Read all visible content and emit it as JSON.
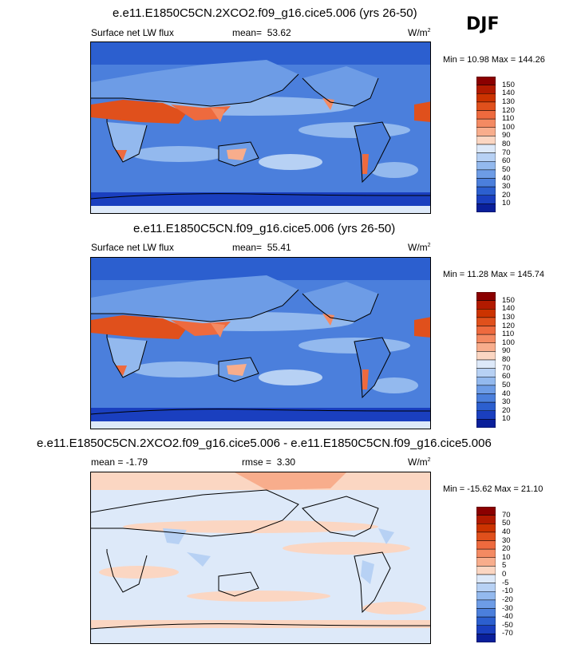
{
  "season": "DJF",
  "panels": [
    {
      "title": "e.e11.E1850C5CN.2XCO2.f09_g16.cice5.006 (yrs 26-50)",
      "variable": "Surface net LW flux",
      "stat_left_label": "",
      "mean_label": "mean=",
      "mean_value": "53.62",
      "units": "W/m",
      "units_sup": "2",
      "min_label": "Min =",
      "min_value": "10.98",
      "max_label": "Max =",
      "max_value": "144.26",
      "colorbar_labels": [
        "150",
        "140",
        "130",
        "120",
        "110",
        "100",
        "90",
        "80",
        "70",
        "60",
        "50",
        "40",
        "30",
        "20",
        "10"
      ],
      "colorbar_colors": [
        "#8b0000",
        "#b21a00",
        "#cc3300",
        "#e0501c",
        "#ee6a3e",
        "#f48a62",
        "#f8ad8c",
        "#fbd6c2",
        "#dde9f9",
        "#b7d1f4",
        "#93b9ee",
        "#6d9ce6",
        "#4b7fdc",
        "#2c5fcf",
        "#1a3fbf",
        "#0a1f9a"
      ]
    },
    {
      "title": "e.e11.E1850C5CN.f09_g16.cice5.006 (yrs 26-50)",
      "variable": "Surface net LW flux",
      "mean_label": "mean=",
      "mean_value": "55.41",
      "units": "W/m",
      "units_sup": "2",
      "min_label": "Min =",
      "min_value": "11.28",
      "max_label": "Max =",
      "max_value": "145.74",
      "colorbar_labels": [
        "150",
        "140",
        "130",
        "120",
        "110",
        "100",
        "90",
        "80",
        "70",
        "60",
        "50",
        "40",
        "30",
        "20",
        "10"
      ],
      "colorbar_colors": [
        "#8b0000",
        "#b21a00",
        "#cc3300",
        "#e0501c",
        "#ee6a3e",
        "#f48a62",
        "#f8ad8c",
        "#fbd6c2",
        "#dde9f9",
        "#b7d1f4",
        "#93b9ee",
        "#6d9ce6",
        "#4b7fdc",
        "#2c5fcf",
        "#1a3fbf",
        "#0a1f9a"
      ]
    },
    {
      "title": "e.e11.E1850C5CN.2XCO2.f09_g16.cice5.006 - e.e11.E1850C5CN.f09_g16.cice5.006",
      "mean_label": "mean =",
      "mean_value": "-1.79",
      "rmse_label": "rmse =",
      "rmse_value": "3.30",
      "units": "W/m",
      "units_sup": "2",
      "min_label": "Min =",
      "min_value": "-15.62",
      "max_label": "Max =",
      "max_value": "21.10",
      "colorbar_labels": [
        "70",
        "50",
        "40",
        "30",
        "20",
        "10",
        "5",
        "0",
        "-5",
        "-10",
        "-20",
        "-30",
        "-40",
        "-50",
        "-70"
      ],
      "colorbar_colors": [
        "#8b0000",
        "#b21a00",
        "#cc3300",
        "#e0501c",
        "#ee6a3e",
        "#f48a62",
        "#f8ad8c",
        "#fbd6c2",
        "#dde9f9",
        "#b7d1f4",
        "#93b9ee",
        "#6d9ce6",
        "#4b7fdc",
        "#2c5fcf",
        "#1a3fbf",
        "#0a1f9a"
      ]
    }
  ],
  "chart_data": [
    {
      "type": "heatmap",
      "title": "e.e11.E1850C5CN.2XCO2.f09_g16.cice5.006 (yrs 26-50)",
      "variable": "Surface net LW flux",
      "season": "DJF",
      "units": "W/m2",
      "mean": 53.62,
      "min": 10.98,
      "max": 144.26,
      "levels": [
        10,
        20,
        30,
        40,
        50,
        60,
        70,
        80,
        90,
        100,
        110,
        120,
        130,
        140,
        150
      ]
    },
    {
      "type": "heatmap",
      "title": "e.e11.E1850C5CN.f09_g16.cice5.006 (yrs 26-50)",
      "variable": "Surface net LW flux",
      "season": "DJF",
      "units": "W/m2",
      "mean": 55.41,
      "min": 11.28,
      "max": 145.74,
      "levels": [
        10,
        20,
        30,
        40,
        50,
        60,
        70,
        80,
        90,
        100,
        110,
        120,
        130,
        140,
        150
      ]
    },
    {
      "type": "heatmap",
      "title": "e.e11.E1850C5CN.2XCO2.f09_g16.cice5.006 - e.e11.E1850C5CN.f09_g16.cice5.006",
      "season": "DJF",
      "units": "W/m2",
      "mean": -1.79,
      "rmse": 3.3,
      "min": -15.62,
      "max": 21.1,
      "levels": [
        -70,
        -50,
        -40,
        -30,
        -20,
        -10,
        -5,
        0,
        5,
        10,
        20,
        30,
        40,
        50,
        70
      ]
    }
  ]
}
